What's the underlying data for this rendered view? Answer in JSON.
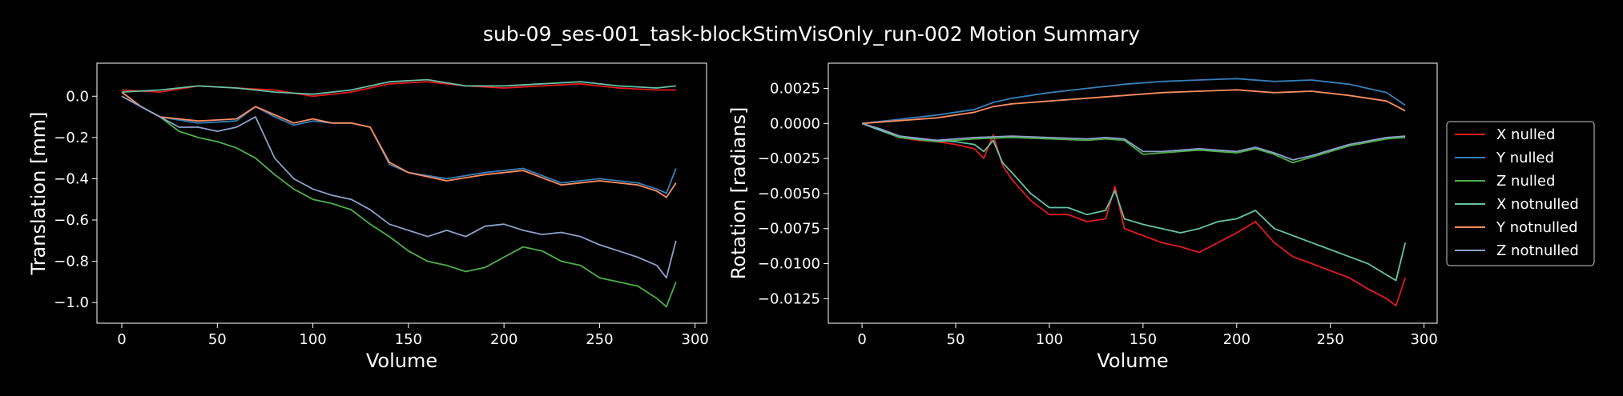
{
  "figure": {
    "title": "sub-09_ses-001_task-blockStimVisOnly_run-002 Motion Summary",
    "background": "#000000",
    "axis_color": "#ffffff"
  },
  "legend": {
    "placement": "right, outside the rotation plot",
    "entries": [
      {
        "label": "X nulled",
        "color": "#e41a1c"
      },
      {
        "label": "Y nulled",
        "color": "#377eb8"
      },
      {
        "label": "Z nulled",
        "color": "#4daf4a"
      },
      {
        "label": "X notnulled",
        "color": "#66c2a5"
      },
      {
        "label": "Y notnulled",
        "color": "#fc8d62"
      },
      {
        "label": "Z notnulled",
        "color": "#8da0cb"
      }
    ]
  },
  "chart_data": [
    {
      "type": "line",
      "title": "",
      "xlabel": "Volume",
      "ylabel": "Translation [mm]",
      "xlim": [
        -13,
        306
      ],
      "ylim": [
        -1.1,
        0.16
      ],
      "xticks": [
        0,
        50,
        100,
        150,
        200,
        250,
        300
      ],
      "yticks": [
        0.0,
        -0.2,
        -0.4,
        -0.6,
        -0.8,
        -1.0
      ],
      "ytick_labels": [
        "0.0",
        "−0.2",
        "−0.4",
        "−0.6",
        "−0.8",
        "−1.0"
      ],
      "grid": false,
      "series": [
        {
          "name": "X nulled",
          "color": "#e41a1c",
          "x": [
            0,
            20,
            40,
            60,
            80,
            100,
            120,
            140,
            160,
            180,
            200,
            220,
            240,
            260,
            280,
            290
          ],
          "y": [
            0.03,
            0.02,
            0.05,
            0.04,
            0.03,
            0.0,
            0.02,
            0.06,
            0.07,
            0.05,
            0.04,
            0.05,
            0.06,
            0.04,
            0.03,
            0.03
          ]
        },
        {
          "name": "Y nulled",
          "color": "#377eb8",
          "x": [
            0,
            10,
            20,
            40,
            60,
            70,
            80,
            90,
            100,
            110,
            120,
            130,
            140,
            150,
            170,
            190,
            210,
            230,
            250,
            270,
            280,
            285,
            290
          ],
          "y": [
            0.02,
            -0.05,
            -0.1,
            -0.13,
            -0.12,
            -0.05,
            -0.1,
            -0.14,
            -0.12,
            -0.13,
            -0.13,
            -0.15,
            -0.33,
            -0.37,
            -0.4,
            -0.37,
            -0.35,
            -0.42,
            -0.4,
            -0.42,
            -0.45,
            -0.47,
            -0.35
          ]
        },
        {
          "name": "Z nulled",
          "color": "#4daf4a",
          "x": [
            0,
            10,
            20,
            30,
            40,
            50,
            60,
            70,
            80,
            90,
            100,
            110,
            120,
            130,
            140,
            150,
            160,
            170,
            180,
            190,
            200,
            210,
            220,
            230,
            240,
            250,
            260,
            270,
            280,
            285,
            290
          ],
          "y": [
            0.0,
            -0.05,
            -0.1,
            -0.17,
            -0.2,
            -0.22,
            -0.25,
            -0.3,
            -0.38,
            -0.45,
            -0.5,
            -0.52,
            -0.55,
            -0.62,
            -0.68,
            -0.75,
            -0.8,
            -0.82,
            -0.85,
            -0.83,
            -0.78,
            -0.73,
            -0.75,
            -0.8,
            -0.82,
            -0.88,
            -0.9,
            -0.92,
            -0.98,
            -1.02,
            -0.9
          ]
        },
        {
          "name": "X notnulled",
          "color": "#66c2a5",
          "x": [
            0,
            20,
            40,
            60,
            80,
            100,
            120,
            140,
            160,
            180,
            200,
            220,
            240,
            260,
            280,
            290
          ],
          "y": [
            0.02,
            0.03,
            0.05,
            0.04,
            0.02,
            0.01,
            0.03,
            0.07,
            0.08,
            0.05,
            0.05,
            0.06,
            0.07,
            0.05,
            0.04,
            0.05
          ]
        },
        {
          "name": "Y notnulled",
          "color": "#fc8d62",
          "x": [
            0,
            10,
            20,
            40,
            60,
            70,
            80,
            90,
            100,
            110,
            120,
            130,
            140,
            150,
            170,
            190,
            210,
            230,
            250,
            270,
            280,
            285,
            290
          ],
          "y": [
            0.02,
            -0.05,
            -0.1,
            -0.12,
            -0.11,
            -0.05,
            -0.09,
            -0.13,
            -0.11,
            -0.13,
            -0.13,
            -0.15,
            -0.32,
            -0.37,
            -0.41,
            -0.38,
            -0.36,
            -0.43,
            -0.41,
            -0.43,
            -0.46,
            -0.49,
            -0.42
          ]
        },
        {
          "name": "Z notnulled",
          "color": "#8da0cb",
          "x": [
            0,
            10,
            20,
            30,
            40,
            50,
            60,
            70,
            80,
            90,
            100,
            110,
            120,
            130,
            140,
            150,
            160,
            170,
            180,
            190,
            200,
            210,
            220,
            230,
            240,
            250,
            260,
            270,
            280,
            285,
            290
          ],
          "y": [
            0.0,
            -0.05,
            -0.1,
            -0.15,
            -0.15,
            -0.17,
            -0.15,
            -0.1,
            -0.3,
            -0.4,
            -0.45,
            -0.48,
            -0.5,
            -0.55,
            -0.62,
            -0.65,
            -0.68,
            -0.65,
            -0.68,
            -0.63,
            -0.62,
            -0.65,
            -0.67,
            -0.66,
            -0.68,
            -0.72,
            -0.75,
            -0.78,
            -0.82,
            -0.88,
            -0.7
          ]
        }
      ]
    },
    {
      "type": "line",
      "title": "",
      "xlabel": "Volume",
      "ylabel": "Rotation [radians]",
      "xlim": [
        -18,
        307
      ],
      "ylim": [
        -0.01425,
        0.0043
      ],
      "xticks": [
        0,
        50,
        100,
        150,
        200,
        250,
        300
      ],
      "yticks": [
        0.0025,
        0.0,
        -0.0025,
        -0.005,
        -0.0075,
        -0.01,
        -0.0125
      ],
      "ytick_labels": [
        "0.0025",
        "0.0000",
        "−0.0025",
        "−0.0050",
        "−0.0075",
        "−0.0100",
        "−0.0125"
      ],
      "grid": false,
      "series": [
        {
          "name": "X nulled",
          "color": "#e41a1c",
          "x": [
            0,
            10,
            20,
            30,
            40,
            50,
            60,
            65,
            70,
            75,
            80,
            90,
            100,
            110,
            120,
            130,
            135,
            140,
            150,
            160,
            170,
            180,
            190,
            200,
            210,
            220,
            230,
            240,
            250,
            260,
            270,
            280,
            285,
            290
          ],
          "y": [
            0.0,
            -0.0005,
            -0.001,
            -0.0012,
            -0.0013,
            -0.0015,
            -0.0018,
            -0.0025,
            -0.0008,
            -0.003,
            -0.004,
            -0.0055,
            -0.0065,
            -0.0065,
            -0.007,
            -0.0068,
            -0.0045,
            -0.0075,
            -0.008,
            -0.0085,
            -0.0088,
            -0.0092,
            -0.0085,
            -0.0078,
            -0.007,
            -0.0085,
            -0.0095,
            -0.01,
            -0.0105,
            -0.011,
            -0.0118,
            -0.0125,
            -0.013,
            -0.011
          ]
        },
        {
          "name": "Y nulled",
          "color": "#377eb8",
          "x": [
            0,
            20,
            40,
            60,
            70,
            80,
            100,
            120,
            140,
            160,
            180,
            200,
            220,
            240,
            260,
            280,
            290
          ],
          "y": [
            0.0,
            0.0003,
            0.0006,
            0.001,
            0.0015,
            0.0018,
            0.0022,
            0.0025,
            0.0028,
            0.003,
            0.0031,
            0.0032,
            0.003,
            0.0031,
            0.0028,
            0.0022,
            0.0013
          ]
        },
        {
          "name": "Z nulled",
          "color": "#4daf4a",
          "x": [
            0,
            10,
            20,
            40,
            60,
            80,
            100,
            120,
            130,
            140,
            150,
            160,
            180,
            200,
            210,
            220,
            230,
            240,
            260,
            280,
            290
          ],
          "y": [
            0.0,
            -0.0005,
            -0.001,
            -0.0013,
            -0.0011,
            -0.001,
            -0.0011,
            -0.0012,
            -0.0011,
            -0.0012,
            -0.0022,
            -0.0021,
            -0.0019,
            -0.0021,
            -0.0018,
            -0.0022,
            -0.0028,
            -0.0024,
            -0.0016,
            -0.0011,
            -0.001
          ]
        },
        {
          "name": "X notnulled",
          "color": "#66c2a5",
          "x": [
            0,
            10,
            20,
            30,
            40,
            50,
            60,
            65,
            70,
            75,
            80,
            90,
            100,
            110,
            120,
            130,
            135,
            140,
            150,
            160,
            170,
            180,
            190,
            200,
            210,
            220,
            230,
            240,
            250,
            260,
            270,
            280,
            285,
            290
          ],
          "y": [
            0.0,
            -0.0005,
            -0.0009,
            -0.0011,
            -0.0012,
            -0.0013,
            -0.0015,
            -0.002,
            -0.0012,
            -0.0028,
            -0.0035,
            -0.005,
            -0.006,
            -0.006,
            -0.0065,
            -0.0062,
            -0.0048,
            -0.0068,
            -0.0072,
            -0.0075,
            -0.0078,
            -0.0075,
            -0.007,
            -0.0068,
            -0.0062,
            -0.0075,
            -0.008,
            -0.0085,
            -0.009,
            -0.0095,
            -0.01,
            -0.0108,
            -0.0112,
            -0.0085
          ]
        },
        {
          "name": "Y notnulled",
          "color": "#fc8d62",
          "x": [
            0,
            20,
            40,
            60,
            70,
            80,
            100,
            120,
            140,
            160,
            180,
            200,
            220,
            240,
            260,
            280,
            290
          ],
          "y": [
            0.0,
            0.0002,
            0.0004,
            0.0008,
            0.0012,
            0.0014,
            0.0016,
            0.0018,
            0.002,
            0.0022,
            0.0023,
            0.0024,
            0.0022,
            0.0023,
            0.002,
            0.0016,
            0.0009
          ]
        },
        {
          "name": "Z notnulled",
          "color": "#8da0cb",
          "x": [
            0,
            10,
            20,
            40,
            60,
            80,
            100,
            120,
            130,
            140,
            150,
            160,
            180,
            200,
            210,
            220,
            230,
            240,
            260,
            280,
            290
          ],
          "y": [
            0.0,
            -0.0004,
            -0.0009,
            -0.0012,
            -0.001,
            -0.0009,
            -0.001,
            -0.0011,
            -0.001,
            -0.0011,
            -0.002,
            -0.002,
            -0.0018,
            -0.002,
            -0.0017,
            -0.0021,
            -0.0026,
            -0.0023,
            -0.0015,
            -0.001,
            -0.0009
          ]
        }
      ]
    }
  ]
}
